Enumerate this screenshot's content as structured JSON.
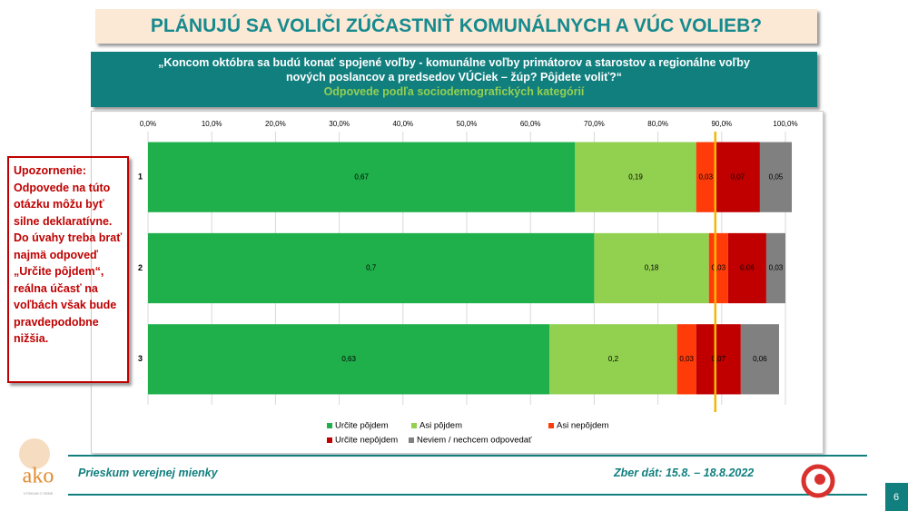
{
  "header": {
    "title": "PLÁNUJÚ SA VOLIČI ZÚČASTNIŤ KOMUNÁLNYCH A VÚC VOLIEB?",
    "question": "„Koncom októbra sa budú konať spojené voľby - komunálne voľby primátorov a starostov a regionálne voľby nových poslancov a predsedov VÚCiek – žúp? Pôjdete voliť?“",
    "subtitle": "Odpovede podľa sociodemografických kategórií"
  },
  "warning": "Upozornenie: Odpovede na túto otázku môžu byť silne deklaratívne. Do úvahy treba brať najmä odpoveď „Určite pôjdem“, reálna účasť na voľbách však bude pravdepodobne nižšia.",
  "footer": {
    "left": "Prieskum verejnej mienky",
    "right": "Zber dát: 15.8. – 18.8.2022",
    "page": "6",
    "logo": "ako",
    "logo_tagline": "VÝSKUM O SEBE"
  },
  "chart_data": {
    "type": "stacked_bar_horizontal",
    "categories": [
      "1",
      "2",
      "3"
    ],
    "series": [
      {
        "name": "Určite pôjdem",
        "color": "#1fb04b",
        "values": [
          0.67,
          0.7,
          0.63
        ],
        "value_labels": [
          "0,67",
          "0,7",
          "0,63"
        ]
      },
      {
        "name": "Asi pôjdem",
        "color": "#92d050",
        "values": [
          0.19,
          0.18,
          0.2
        ],
        "value_labels": [
          "0,19",
          "0,18",
          "0,2"
        ]
      },
      {
        "name": "Asi nepôjdem",
        "color": "#ff3b0a",
        "values": [
          0.03,
          0.03,
          0.03
        ],
        "value_labels": [
          "0,03",
          "0,03",
          "0,03"
        ]
      },
      {
        "name": "Určite nepôjdem",
        "color": "#c00000",
        "values": [
          0.07,
          0.06,
          0.07
        ],
        "value_labels": [
          "0,07",
          "0,06",
          "0,07"
        ]
      },
      {
        "name": "Neviem / nechcem odpovedať",
        "color": "#808080",
        "values": [
          0.05,
          0.03,
          0.06
        ],
        "value_labels": [
          "0,05",
          "0,03",
          "0,06"
        ]
      }
    ],
    "xlim": [
      0,
      1
    ],
    "xticks": [
      {
        "value": 0,
        "label": "0,0%"
      },
      {
        "value": 0.1,
        "label": "10,0%"
      },
      {
        "value": 0.2,
        "label": "20,0%"
      },
      {
        "value": 0.3,
        "label": "30,0%"
      },
      {
        "value": 0.4,
        "label": "40,0%"
      },
      {
        "value": 0.5,
        "label": "50,0%"
      },
      {
        "value": 0.6,
        "label": "60,0%"
      },
      {
        "value": 0.7,
        "label": "70,0%"
      },
      {
        "value": 0.8,
        "label": "80,0%"
      },
      {
        "value": 0.9,
        "label": "90,0%"
      },
      {
        "value": 1,
        "label": "100,0%"
      }
    ],
    "grid": true,
    "reference_line": {
      "value": 0.89,
      "color": "#f5b800"
    }
  }
}
